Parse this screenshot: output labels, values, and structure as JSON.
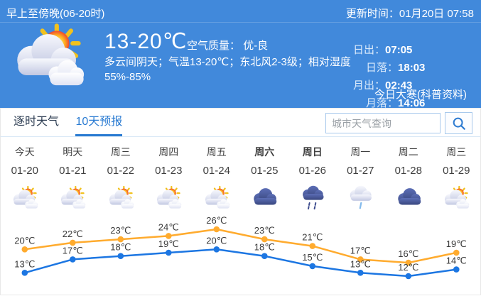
{
  "header": {
    "period": "早上至傍晚(06-20时)",
    "update_time": "更新时间：01月20日 07:58",
    "temperature_range": "13-20℃",
    "air_quality_label": "空气质量：",
    "air_quality_value": "优-良",
    "summary_line1": "多云间阴天；气温13-20℃；东北风2-3级；相对湿度",
    "summary_line2": "55%-85%",
    "sun_moon": [
      {
        "label": "日出：",
        "value": "07:05"
      },
      {
        "label": "日落：",
        "value": "18:03"
      },
      {
        "label": "月出：",
        "value": "02:43"
      },
      {
        "label": "月落：",
        "value": "14:06"
      }
    ],
    "solar_term": "今日大寒(科普资料)",
    "weather_icon": "partly-cloudy"
  },
  "tabs": [
    {
      "label": "逐时天气",
      "active": false
    },
    {
      "label": "10天预报",
      "active": true
    }
  ],
  "search": {
    "placeholder": "城市天气查询",
    "icon": "search-icon"
  },
  "forecast_days": [
    {
      "day": "今天",
      "date": "01-20",
      "icon": "partly-cloudy",
      "weekend": false
    },
    {
      "day": "明天",
      "date": "01-21",
      "icon": "partly-cloudy",
      "weekend": false
    },
    {
      "day": "周三",
      "date": "01-22",
      "icon": "partly-cloudy",
      "weekend": false
    },
    {
      "day": "周四",
      "date": "01-23",
      "icon": "partly-cloudy",
      "weekend": false
    },
    {
      "day": "周五",
      "date": "01-24",
      "icon": "partly-cloudy",
      "weekend": false
    },
    {
      "day": "周六",
      "date": "01-25",
      "icon": "overcast",
      "weekend": true
    },
    {
      "day": "周日",
      "date": "01-26",
      "icon": "rain",
      "weekend": true
    },
    {
      "day": "周一",
      "date": "01-27",
      "icon": "light-rain",
      "weekend": false
    },
    {
      "day": "周二",
      "date": "01-28",
      "icon": "overcast",
      "weekend": false
    },
    {
      "day": "周三",
      "date": "01-29",
      "icon": "partly-cloudy",
      "weekend": false
    }
  ],
  "chart_data": {
    "type": "line",
    "categories": [
      "01-20",
      "01-21",
      "01-22",
      "01-23",
      "01-24",
      "01-25",
      "01-26",
      "01-27",
      "01-28",
      "01-29"
    ],
    "series": [
      {
        "name": "high",
        "color": "#ffab2e",
        "values": [
          20,
          22,
          23,
          24,
          26,
          23,
          21,
          17,
          16,
          19
        ]
      },
      {
        "name": "low",
        "color": "#1c76e2",
        "values": [
          13,
          17,
          18,
          19,
          20,
          18,
          15,
          13,
          12,
          14
        ]
      }
    ],
    "unit": "℃",
    "ylim": [
      10,
      28
    ],
    "grid": false,
    "legend": "none"
  },
  "colors": {
    "header_bg": "#4189db",
    "tab_active": "#2a7bd2",
    "high_line": "#ffab2e",
    "low_line": "#1c76e2"
  }
}
